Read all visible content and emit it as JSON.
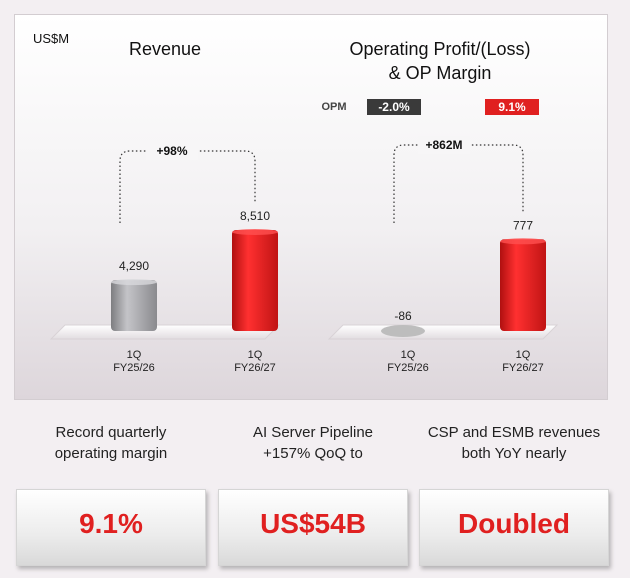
{
  "unit_label": "US$M",
  "chart_data": [
    {
      "type": "bar",
      "title": "Revenue",
      "categories": [
        "1Q\nFY25/26",
        "1Q\nFY26/27"
      ],
      "values": [
        4290,
        8510
      ],
      "value_labels": [
        "4,290",
        "8,510"
      ],
      "bar_colors": [
        "#9a9a9a",
        "#e02020"
      ],
      "growth_annotation": "+98%"
    },
    {
      "type": "bar",
      "title": "Operating Profit/(Loss)\n& OP Margin",
      "categories": [
        "1Q\nFY25/26",
        "1Q\nFY26/27"
      ],
      "values": [
        -86,
        777
      ],
      "value_labels": [
        "-86",
        "777"
      ],
      "bar_colors": [
        "#9a9a9a",
        "#e02020"
      ],
      "growth_annotation": "+862M",
      "opm": {
        "label": "OPM",
        "values": [
          "-2.0%",
          "9.1%"
        ],
        "badge_colors": [
          "#3a3a3a",
          "#e02020"
        ]
      }
    }
  ],
  "cards": [
    {
      "caption": "Record quarterly\noperating margin",
      "value": "9.1%"
    },
    {
      "caption": "AI Server Pipeline\n+157% QoQ to",
      "value": "US$54B"
    },
    {
      "caption": "CSP and ESMB revenues\nboth YoY nearly",
      "value": "Doubled"
    }
  ]
}
